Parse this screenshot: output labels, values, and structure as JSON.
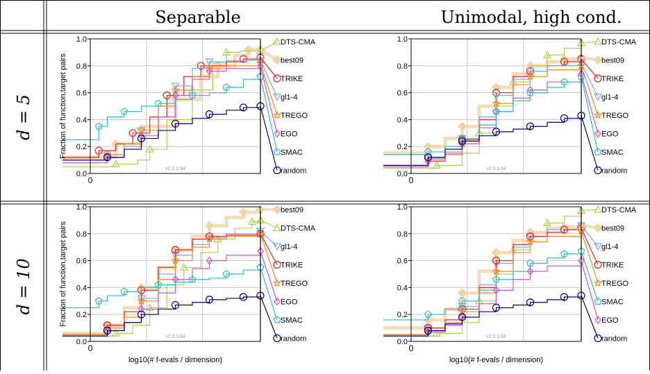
{
  "columns": [
    "Separable",
    "Unimodal, high cond."
  ],
  "rows": [
    "d = 5",
    "d = 10"
  ],
  "colors": {
    "DTS-CMA": "#a6d44a",
    "best09": "#f2d3a6",
    "TRIKE": "#e8221c",
    "gl1-4": "#7aa6f0",
    "TREGO": "#f58a1f",
    "EGO": "#d94ed9",
    "SMAC": "#2fbcc4",
    "random": "#00007a"
  },
  "chart_data": [
    {
      "type": "line",
      "row": 0,
      "col": 0,
      "ylabel": "Fraction of function,target pairs",
      "xlabel": "",
      "version": "v2.3.3.84",
      "xticks": [
        "0"
      ],
      "yticks": [
        "0.0",
        "0.2",
        "0.4",
        "0.6",
        "0.8",
        "1.0"
      ],
      "xlim": [
        0,
        1
      ],
      "ylim": [
        0,
        1
      ],
      "grid": true,
      "series": [
        {
          "name": "best09",
          "x": [
            0,
            0.15,
            0.3,
            0.5,
            0.65,
            0.75,
            0.85,
            0.93,
            1.0
          ],
          "y": [
            0.12,
            0.22,
            0.35,
            0.55,
            0.72,
            0.8,
            0.88,
            0.92,
            0.92
          ]
        },
        {
          "name": "DTS-CMA",
          "x": [
            0,
            0.15,
            0.28,
            0.35,
            0.45,
            0.6,
            0.72,
            0.8,
            0.88,
            1.0
          ],
          "y": [
            0.05,
            0.07,
            0.1,
            0.18,
            0.4,
            0.62,
            0.82,
            0.9,
            0.91,
            0.91
          ]
        },
        {
          "name": "TRIKE",
          "x": [
            0,
            0.05,
            0.15,
            0.25,
            0.35,
            0.45,
            0.55,
            0.65,
            0.8,
            0.9,
            1.0
          ],
          "y": [
            0.12,
            0.17,
            0.22,
            0.3,
            0.42,
            0.58,
            0.72,
            0.8,
            0.83,
            0.85,
            0.86
          ]
        },
        {
          "name": "gl1-4",
          "x": [
            0,
            0.1,
            0.2,
            0.3,
            0.4,
            0.5,
            0.6,
            0.7,
            0.8,
            1.0
          ],
          "y": [
            0.1,
            0.14,
            0.2,
            0.32,
            0.5,
            0.65,
            0.78,
            0.83,
            0.84,
            0.84
          ]
        },
        {
          "name": "TREGO",
          "x": [
            0,
            0.1,
            0.2,
            0.3,
            0.4,
            0.5,
            0.6,
            0.7,
            0.8,
            1.0
          ],
          "y": [
            0.1,
            0.14,
            0.22,
            0.32,
            0.5,
            0.62,
            0.72,
            0.78,
            0.8,
            0.82
          ]
        },
        {
          "name": "EGO",
          "x": [
            0,
            0.1,
            0.2,
            0.3,
            0.4,
            0.5,
            0.6,
            0.7,
            0.8,
            1.0
          ],
          "y": [
            0.08,
            0.12,
            0.18,
            0.28,
            0.42,
            0.58,
            0.7,
            0.76,
            0.78,
            0.8
          ]
        },
        {
          "name": "SMAC",
          "x": [
            0,
            0.05,
            0.1,
            0.2,
            0.3,
            0.4,
            0.5,
            0.6,
            0.7,
            0.8,
            0.9,
            1.0
          ],
          "y": [
            0.25,
            0.35,
            0.42,
            0.46,
            0.5,
            0.52,
            0.55,
            0.58,
            0.6,
            0.64,
            0.7,
            0.72
          ]
        },
        {
          "name": "random",
          "x": [
            0,
            0.1,
            0.2,
            0.3,
            0.4,
            0.5,
            0.6,
            0.7,
            0.8,
            0.9,
            1.0
          ],
          "y": [
            0.1,
            0.12,
            0.18,
            0.26,
            0.32,
            0.37,
            0.41,
            0.44,
            0.47,
            0.49,
            0.5
          ]
        }
      ],
      "legend_order": [
        "DTS-CMA",
        "best09",
        "TRIKE",
        "gl1-4",
        "TREGO",
        "EGO",
        "SMAC",
        "random"
      ]
    },
    {
      "type": "line",
      "row": 0,
      "col": 1,
      "ylabel": "",
      "xlabel": "",
      "version": "v2.3.3.84",
      "xticks": [
        "0"
      ],
      "yticks": [
        "0.0",
        "0.2",
        "0.4",
        "0.6",
        "0.8",
        "1.0"
      ],
      "xlim": [
        0,
        1
      ],
      "ylim": [
        0,
        1
      ],
      "grid": true,
      "series": [
        {
          "name": "best09",
          "x": [
            0,
            0.1,
            0.2,
            0.3,
            0.4,
            0.5,
            0.6,
            0.7,
            0.8,
            0.9,
            1.0
          ],
          "y": [
            0.15,
            0.2,
            0.26,
            0.35,
            0.5,
            0.64,
            0.74,
            0.8,
            0.83,
            0.85,
            0.86
          ]
        },
        {
          "name": "DTS-CMA",
          "x": [
            0,
            0.15,
            0.3,
            0.4,
            0.5,
            0.6,
            0.7,
            0.8,
            0.9,
            1.0
          ],
          "y": [
            0.04,
            0.06,
            0.15,
            0.3,
            0.5,
            0.68,
            0.8,
            0.88,
            0.93,
            0.97
          ]
        },
        {
          "name": "TRIKE",
          "x": [
            0,
            0.1,
            0.2,
            0.3,
            0.4,
            0.5,
            0.6,
            0.7,
            0.8,
            0.9,
            1.0
          ],
          "y": [
            0.06,
            0.12,
            0.18,
            0.25,
            0.4,
            0.6,
            0.72,
            0.76,
            0.8,
            0.83,
            0.85
          ]
        },
        {
          "name": "gl1-4",
          "x": [
            0,
            0.1,
            0.2,
            0.3,
            0.4,
            0.5,
            0.6,
            0.7,
            0.8,
            1.0
          ],
          "y": [
            0.06,
            0.11,
            0.16,
            0.26,
            0.42,
            0.58,
            0.7,
            0.76,
            0.8,
            0.82
          ]
        },
        {
          "name": "TREGO",
          "x": [
            0,
            0.1,
            0.2,
            0.3,
            0.4,
            0.5,
            0.6,
            0.7,
            0.8,
            1.0
          ],
          "y": [
            0.05,
            0.1,
            0.15,
            0.22,
            0.36,
            0.52,
            0.66,
            0.72,
            0.77,
            0.8
          ]
        },
        {
          "name": "EGO",
          "x": [
            0,
            0.1,
            0.2,
            0.3,
            0.4,
            0.5,
            0.6,
            0.7,
            0.8,
            1.0
          ],
          "y": [
            0.05,
            0.09,
            0.14,
            0.22,
            0.34,
            0.46,
            0.56,
            0.62,
            0.68,
            0.74
          ]
        },
        {
          "name": "SMAC",
          "x": [
            0,
            0.1,
            0.2,
            0.3,
            0.4,
            0.5,
            0.6,
            0.7,
            0.8,
            0.9,
            1.0
          ],
          "y": [
            0.14,
            0.16,
            0.2,
            0.26,
            0.36,
            0.46,
            0.54,
            0.6,
            0.64,
            0.68,
            0.72
          ]
        },
        {
          "name": "random",
          "x": [
            0,
            0.1,
            0.2,
            0.3,
            0.4,
            0.5,
            0.6,
            0.7,
            0.8,
            0.9,
            1.0
          ],
          "y": [
            0.06,
            0.12,
            0.18,
            0.24,
            0.28,
            0.31,
            0.33,
            0.35,
            0.38,
            0.41,
            0.43
          ]
        }
      ],
      "legend_order": [
        "DTS-CMA",
        "best09",
        "TRIKE",
        "gl1-4",
        "TREGO",
        "EGO",
        "SMAC",
        "random"
      ]
    },
    {
      "type": "line",
      "row": 1,
      "col": 0,
      "ylabel": "Fraction of function,target pairs",
      "xlabel": "log10(# f-evals / dimension)",
      "version": "v2.3.3.84",
      "xticks": [
        "0"
      ],
      "yticks": [
        "0.0",
        "0.2",
        "0.4",
        "0.6",
        "0.8",
        "1.0"
      ],
      "xlim": [
        0,
        1
      ],
      "ylim": [
        0,
        1
      ],
      "grid": true,
      "series": [
        {
          "name": "best09",
          "x": [
            0,
            0.1,
            0.2,
            0.3,
            0.4,
            0.5,
            0.6,
            0.7,
            0.8,
            0.9,
            1.0
          ],
          "y": [
            0.06,
            0.12,
            0.25,
            0.4,
            0.55,
            0.68,
            0.78,
            0.86,
            0.92,
            0.96,
            0.98
          ]
        },
        {
          "name": "DTS-CMA",
          "x": [
            0,
            0.15,
            0.25,
            0.35,
            0.45,
            0.55,
            0.65,
            0.75,
            0.85,
            0.95,
            1.0
          ],
          "y": [
            0.04,
            0.06,
            0.12,
            0.25,
            0.42,
            0.55,
            0.66,
            0.76,
            0.84,
            0.89,
            0.9
          ]
        },
        {
          "name": "gl1-4",
          "x": [
            0,
            0.1,
            0.2,
            0.3,
            0.4,
            0.5,
            0.6,
            0.7,
            0.8,
            1.0
          ],
          "y": [
            0.05,
            0.1,
            0.18,
            0.32,
            0.5,
            0.64,
            0.72,
            0.77,
            0.8,
            0.82
          ]
        },
        {
          "name": "TRIKE",
          "x": [
            0,
            0.1,
            0.2,
            0.3,
            0.4,
            0.5,
            0.6,
            0.7,
            0.8,
            1.0
          ],
          "y": [
            0.05,
            0.12,
            0.22,
            0.38,
            0.55,
            0.68,
            0.76,
            0.78,
            0.79,
            0.8
          ]
        },
        {
          "name": "TREGO",
          "x": [
            0,
            0.1,
            0.2,
            0.3,
            0.4,
            0.5,
            0.6,
            0.7,
            0.8,
            1.0
          ],
          "y": [
            0.05,
            0.1,
            0.18,
            0.3,
            0.46,
            0.6,
            0.7,
            0.76,
            0.78,
            0.8
          ]
        },
        {
          "name": "EGO",
          "x": [
            0,
            0.1,
            0.2,
            0.3,
            0.4,
            0.5,
            0.6,
            0.7,
            0.8,
            1.0
          ],
          "y": [
            0.04,
            0.08,
            0.14,
            0.24,
            0.36,
            0.46,
            0.54,
            0.6,
            0.64,
            0.67
          ]
        },
        {
          "name": "SMAC",
          "x": [
            0,
            0.05,
            0.1,
            0.2,
            0.3,
            0.4,
            0.5,
            0.6,
            0.7,
            0.8,
            0.9,
            1.0
          ],
          "y": [
            0.25,
            0.3,
            0.34,
            0.37,
            0.4,
            0.42,
            0.44,
            0.46,
            0.47,
            0.5,
            0.53,
            0.55
          ]
        },
        {
          "name": "random",
          "x": [
            0,
            0.1,
            0.2,
            0.3,
            0.4,
            0.5,
            0.6,
            0.7,
            0.8,
            0.9,
            1.0
          ],
          "y": [
            0.04,
            0.08,
            0.14,
            0.2,
            0.24,
            0.27,
            0.29,
            0.31,
            0.32,
            0.33,
            0.34
          ]
        }
      ],
      "legend_order": [
        "best09",
        "DTS-CMA",
        "gl1-4",
        "TRIKE",
        "TREGO",
        "EGO",
        "SMAC",
        "random"
      ]
    },
    {
      "type": "line",
      "row": 1,
      "col": 1,
      "ylabel": "",
      "xlabel": "log10(# f-evals / dimension)",
      "version": "v2.3.3.84",
      "xticks": [
        "0"
      ],
      "yticks": [
        "0.0",
        "0.2",
        "0.4",
        "0.6",
        "0.8",
        "1.0"
      ],
      "xlim": [
        0,
        1
      ],
      "ylim": [
        0,
        1
      ],
      "grid": true,
      "series": [
        {
          "name": "DTS-CMA",
          "x": [
            0,
            0.15,
            0.3,
            0.4,
            0.5,
            0.6,
            0.7,
            0.8,
            0.9,
            1.0
          ],
          "y": [
            0.04,
            0.06,
            0.14,
            0.3,
            0.5,
            0.68,
            0.8,
            0.88,
            0.93,
            0.97
          ]
        },
        {
          "name": "best09",
          "x": [
            0,
            0.1,
            0.2,
            0.3,
            0.4,
            0.5,
            0.6,
            0.7,
            0.8,
            0.9,
            1.0
          ],
          "y": [
            0.1,
            0.16,
            0.24,
            0.36,
            0.52,
            0.66,
            0.75,
            0.81,
            0.84,
            0.85,
            0.86
          ]
        },
        {
          "name": "gl1-4",
          "x": [
            0,
            0.1,
            0.2,
            0.3,
            0.4,
            0.5,
            0.6,
            0.7,
            0.8,
            1.0
          ],
          "y": [
            0.05,
            0.1,
            0.16,
            0.26,
            0.42,
            0.58,
            0.7,
            0.78,
            0.83,
            0.86
          ]
        },
        {
          "name": "TRIKE",
          "x": [
            0,
            0.1,
            0.2,
            0.3,
            0.4,
            0.5,
            0.6,
            0.7,
            0.8,
            0.9,
            1.0
          ],
          "y": [
            0.05,
            0.1,
            0.16,
            0.24,
            0.4,
            0.6,
            0.72,
            0.78,
            0.81,
            0.83,
            0.84
          ]
        },
        {
          "name": "TREGO",
          "x": [
            0,
            0.1,
            0.2,
            0.3,
            0.4,
            0.5,
            0.6,
            0.7,
            0.8,
            1.0
          ],
          "y": [
            0.05,
            0.08,
            0.14,
            0.22,
            0.36,
            0.52,
            0.66,
            0.74,
            0.78,
            0.82
          ]
        },
        {
          "name": "SMAC",
          "x": [
            0,
            0.1,
            0.2,
            0.3,
            0.4,
            0.5,
            0.6,
            0.7,
            0.8,
            0.9,
            1.0
          ],
          "y": [
            0.16,
            0.2,
            0.24,
            0.3,
            0.38,
            0.46,
            0.52,
            0.58,
            0.62,
            0.65,
            0.67
          ]
        },
        {
          "name": "EGO",
          "x": [
            0,
            0.1,
            0.2,
            0.3,
            0.4,
            0.5,
            0.6,
            0.7,
            0.8,
            1.0
          ],
          "y": [
            0.04,
            0.07,
            0.12,
            0.18,
            0.28,
            0.38,
            0.46,
            0.52,
            0.56,
            0.6
          ]
        },
        {
          "name": "random",
          "x": [
            0,
            0.1,
            0.2,
            0.3,
            0.4,
            0.5,
            0.6,
            0.7,
            0.8,
            0.9,
            1.0
          ],
          "y": [
            0.04,
            0.08,
            0.13,
            0.18,
            0.22,
            0.25,
            0.27,
            0.29,
            0.31,
            0.33,
            0.34
          ]
        }
      ],
      "legend_order": [
        "DTS-CMA",
        "best09",
        "gl1-4",
        "TRIKE",
        "TREGO",
        "SMAC",
        "EGO",
        "random"
      ]
    }
  ]
}
